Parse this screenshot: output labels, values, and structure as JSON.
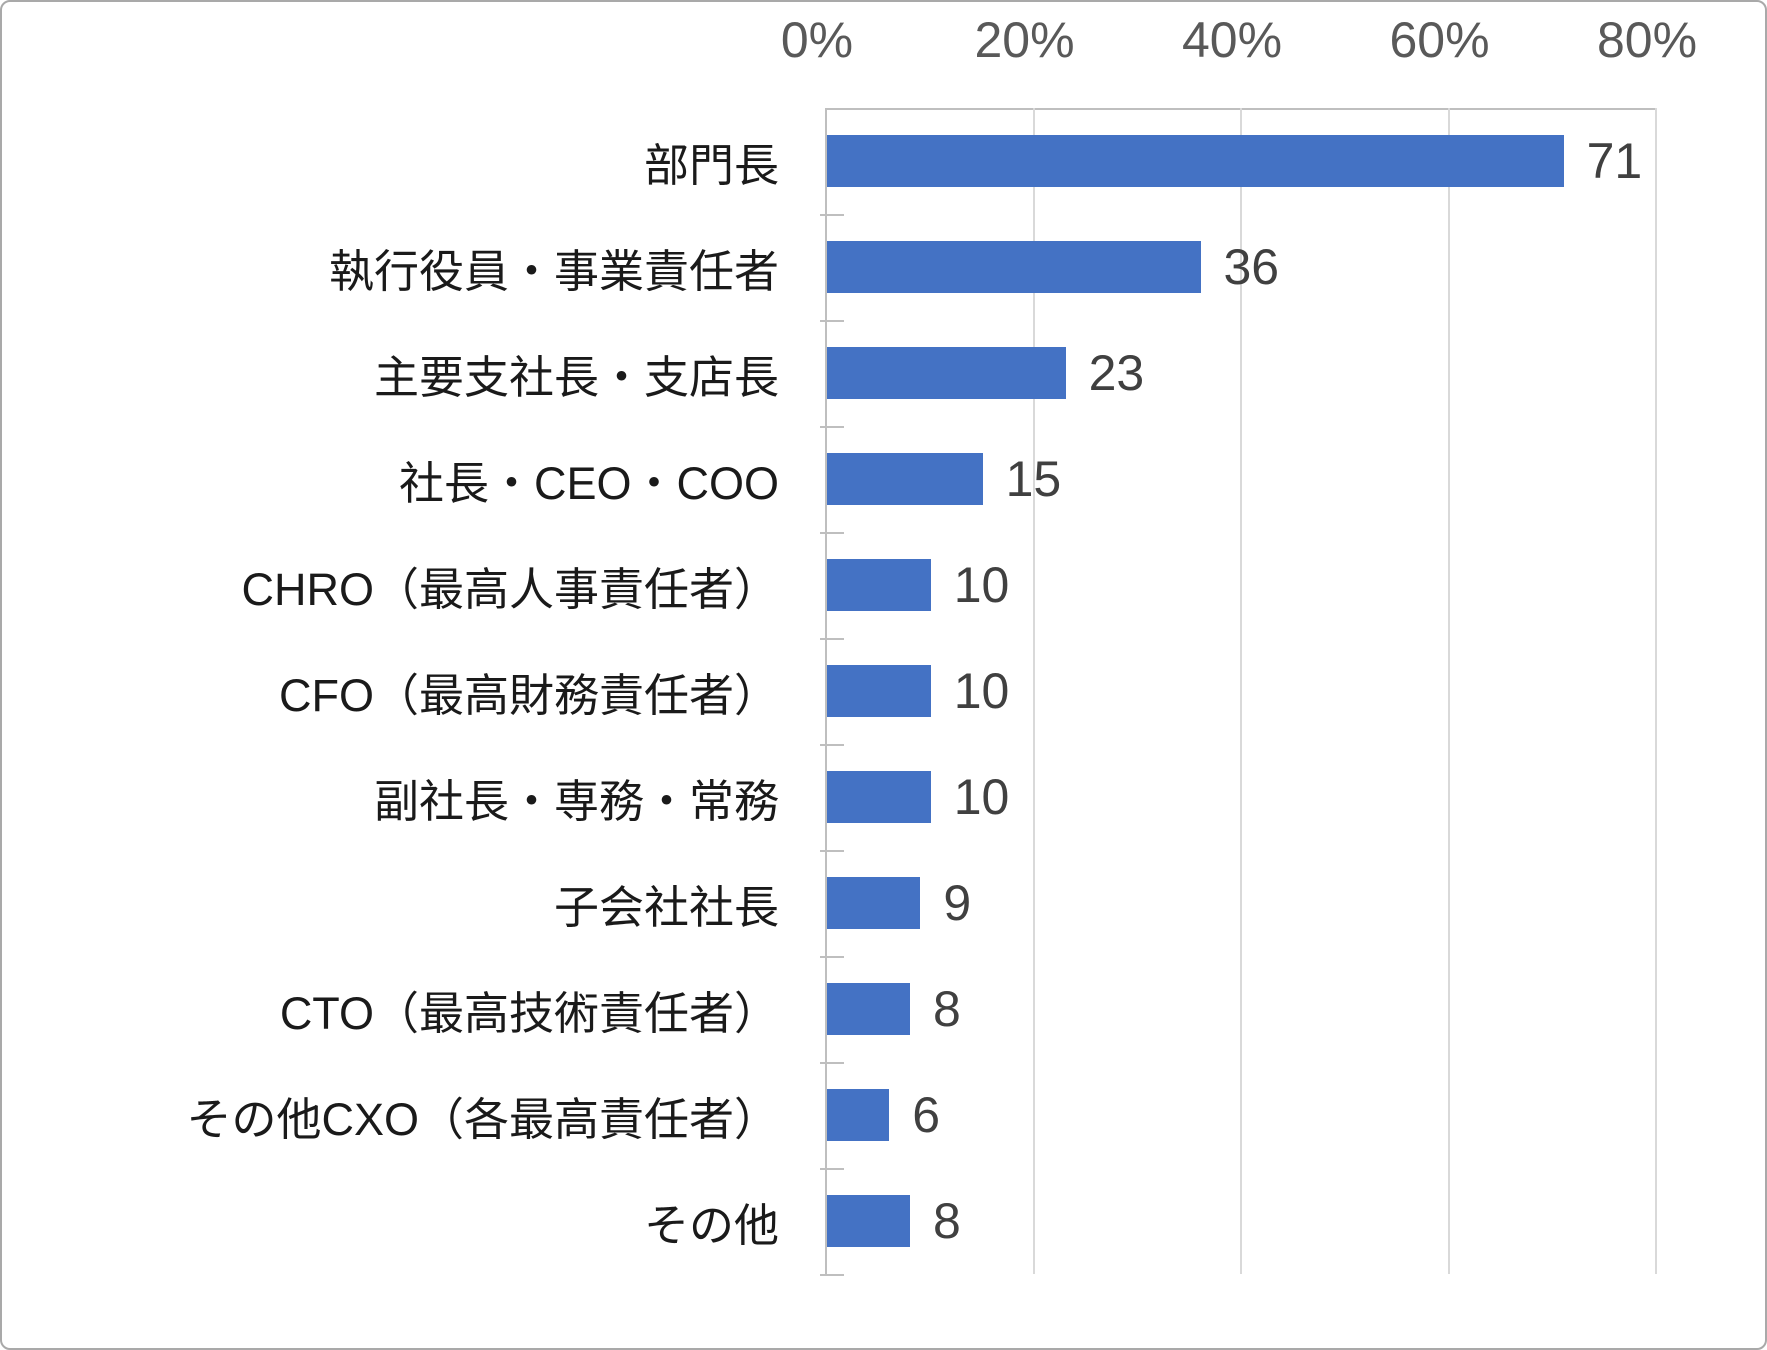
{
  "frame": {
    "background": "#ffffff",
    "border_color": "#a9a9a9"
  },
  "chart_data": {
    "type": "bar",
    "orientation": "horizontal",
    "title": "",
    "categories": [
      "部門長",
      "執行役員・事業責任者",
      "主要支社長・支店長",
      "社長・CEO・COO",
      "CHRO（最高人事責任者）",
      "CFO（最高財務責任者）",
      "副社長・専務・常務",
      "子会社社長",
      "CTO（最高技術責任者）",
      "その他CXO（各最高責任者）",
      "その他"
    ],
    "values": [
      71,
      36,
      23,
      15,
      10,
      10,
      10,
      9,
      8,
      6,
      8
    ],
    "data_labels": [
      "71",
      "36",
      "23",
      "15",
      "10",
      "10",
      "10",
      "9",
      "8",
      "6",
      "8"
    ],
    "x_axis": {
      "position": "top",
      "min": 0,
      "max": 80,
      "tick_interval": 20,
      "ticks": [
        "0%",
        "20%",
        "40%",
        "60%",
        "80%"
      ]
    },
    "y_axis": {
      "label_side": "left"
    },
    "grid": "vertical-major",
    "legend": false,
    "colors": {
      "bar": "#4472c4",
      "gridline": "#d9d9d9",
      "axis_line": "#bfbfbf",
      "category_label": "#1a1a1a",
      "value_label": "#404040",
      "axis_tick_label": "#595959"
    }
  }
}
